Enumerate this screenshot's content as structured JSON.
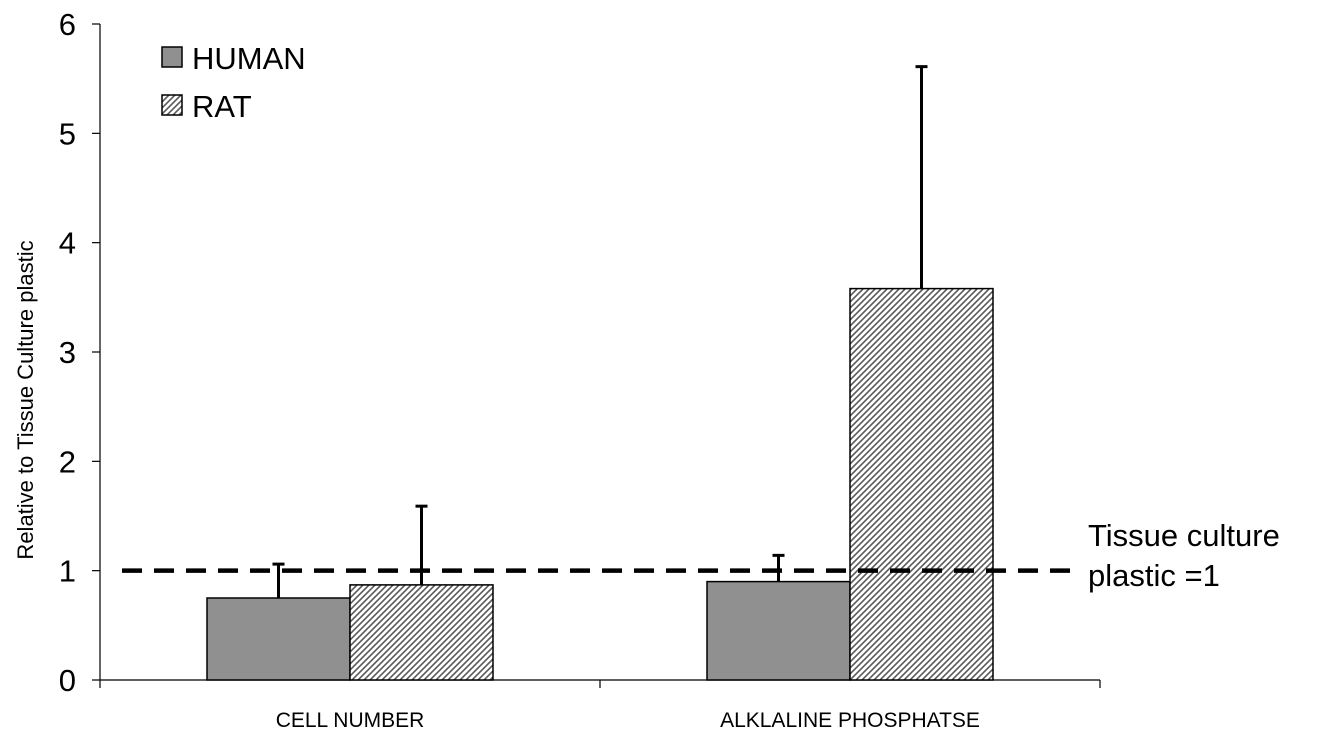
{
  "chart_data": {
    "type": "bar",
    "categories": [
      "CELL NUMBER",
      "ALKLALINE PHOSPHATSE"
    ],
    "series": [
      {
        "name": "HUMAN",
        "values": [
          0.75,
          0.9
        ],
        "error": [
          0.31,
          0.24
        ],
        "color": "#909090",
        "pattern": "solid"
      },
      {
        "name": "RAT",
        "values": [
          0.87,
          3.58
        ],
        "error": [
          0.72,
          2.03
        ],
        "color": "#ffffff",
        "pattern": "diagonal-hatch"
      }
    ],
    "xlabel": "",
    "ylabel": "Relative to Tissue Culture plastic",
    "ylim": [
      0,
      6
    ],
    "yticks": [
      "0",
      "1",
      "2",
      "3",
      "4",
      "5",
      "6"
    ],
    "reference_line": {
      "value": 1,
      "style": "dashed",
      "label_lines": [
        "Tissue culture",
        "plastic =1"
      ]
    },
    "legend": {
      "placement": "top-left"
    },
    "grid": false
  }
}
